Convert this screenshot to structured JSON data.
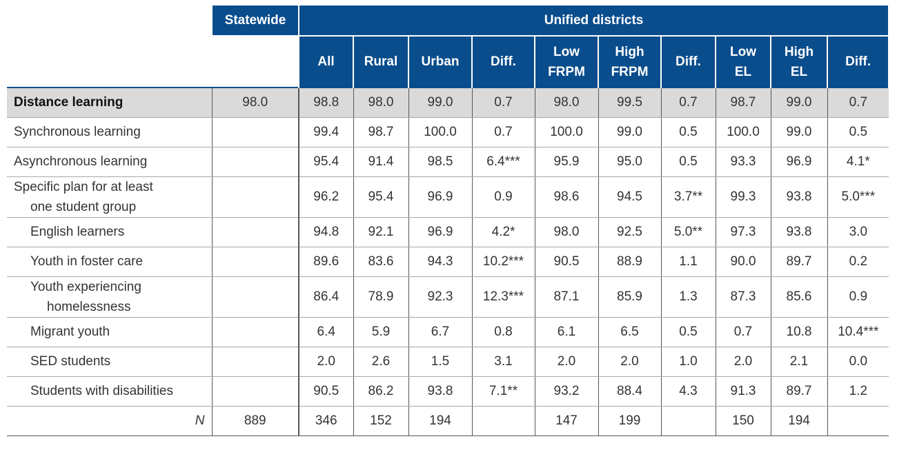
{
  "header": {
    "statewide": "Statewide",
    "unified": "Unified districts",
    "columns": [
      {
        "line1": "All",
        "line2": ""
      },
      {
        "line1": "Rural",
        "line2": ""
      },
      {
        "line1": "Urban",
        "line2": ""
      },
      {
        "line1": "Diff.",
        "line2": ""
      },
      {
        "line1": "Low",
        "line2": "FRPM"
      },
      {
        "line1": "High",
        "line2": "FRPM"
      },
      {
        "line1": "Diff.",
        "line2": ""
      },
      {
        "line1": "Low",
        "line2": "EL"
      },
      {
        "line1": "High",
        "line2": "EL"
      },
      {
        "line1": "Diff.",
        "line2": ""
      }
    ]
  },
  "rows": [
    {
      "label": "Distance learning",
      "label2": "",
      "indent": 0,
      "statewide": "98.0",
      "values": [
        "98.8",
        "98.0",
        "99.0",
        "0.7",
        "98.0",
        "99.5",
        "0.7",
        "98.7",
        "99.0",
        "0.7"
      ]
    },
    {
      "label": "Synchronous learning",
      "label2": "",
      "indent": 0,
      "statewide": "",
      "values": [
        "99.4",
        "98.7",
        "100.0",
        "0.7",
        "100.0",
        "99.0",
        "0.5",
        "100.0",
        "99.0",
        "0.5"
      ]
    },
    {
      "label": "Asynchronous learning",
      "label2": "",
      "indent": 0,
      "statewide": "",
      "values": [
        "95.4",
        "91.4",
        "98.5",
        "6.4***",
        "95.9",
        "95.0",
        "0.5",
        "93.3",
        "96.9",
        "4.1*"
      ]
    },
    {
      "label": "Specific plan for at least",
      "label2": "one student group",
      "indent": 0,
      "statewide": "",
      "values": [
        "96.2",
        "95.4",
        "96.9",
        "0.9",
        "98.6",
        "94.5",
        "3.7**",
        "99.3",
        "93.8",
        "5.0***"
      ]
    },
    {
      "label": "English learners",
      "label2": "",
      "indent": 1,
      "statewide": "",
      "values": [
        "94.8",
        "92.1",
        "96.9",
        "4.2*",
        "98.0",
        "92.5",
        "5.0**",
        "97.3",
        "93.8",
        "3.0"
      ]
    },
    {
      "label": "Youth in foster care",
      "label2": "",
      "indent": 1,
      "statewide": "",
      "values": [
        "89.6",
        "83.6",
        "94.3",
        "10.2***",
        "90.5",
        "88.9",
        "1.1",
        "90.0",
        "89.7",
        "0.2"
      ]
    },
    {
      "label": "Youth experiencing",
      "label2": "homelessness",
      "indent": 1,
      "statewide": "",
      "values": [
        "86.4",
        "78.9",
        "92.3",
        "12.3***",
        "87.1",
        "85.9",
        "1.3",
        "87.3",
        "85.6",
        "0.9"
      ]
    },
    {
      "label": "Migrant youth",
      "label2": "",
      "indent": 1,
      "statewide": "",
      "values": [
        "6.4",
        "5.9",
        "6.7",
        "0.8",
        "6.1",
        "6.5",
        "0.5",
        "0.7",
        "10.8",
        "10.4***"
      ]
    },
    {
      "label": "SED students",
      "label2": "",
      "indent": 1,
      "statewide": "",
      "values": [
        "2.0",
        "2.6",
        "1.5",
        "3.1",
        "2.0",
        "2.0",
        "1.0",
        "2.0",
        "2.1",
        "0.0"
      ]
    },
    {
      "label": "Students with disabilities",
      "label2": "",
      "indent": 1,
      "statewide": "",
      "values": [
        "90.5",
        "86.2",
        "93.8",
        "7.1**",
        "93.2",
        "88.4",
        "4.3",
        "91.3",
        "89.7",
        "1.2"
      ]
    }
  ],
  "n_row": {
    "label": "N",
    "statewide": "889",
    "values": [
      "346",
      "152",
      "194",
      "",
      "147",
      "199",
      "",
      "150",
      "194",
      ""
    ]
  }
}
